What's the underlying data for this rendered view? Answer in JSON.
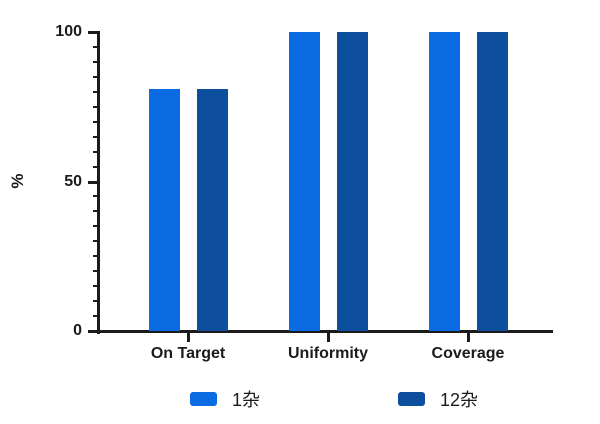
{
  "chart_data": {
    "type": "bar",
    "title": "",
    "xlabel": "",
    "ylabel": "%",
    "categories": [
      "On Target",
      "Uniformity",
      "Coverage"
    ],
    "series": [
      {
        "name": "1杂",
        "color": "#0A6BE3",
        "values": [
          81,
          100,
          100
        ]
      },
      {
        "name": "12杂",
        "color": "#0D4F9D",
        "values": [
          81,
          100,
          100
        ]
      }
    ],
    "ylim": [
      0,
      100
    ],
    "yticks": [
      0,
      50,
      100
    ],
    "minor_tick_step": 5,
    "grid": false,
    "axis_color": "#1b1b1b",
    "legend_position": "bottom"
  }
}
